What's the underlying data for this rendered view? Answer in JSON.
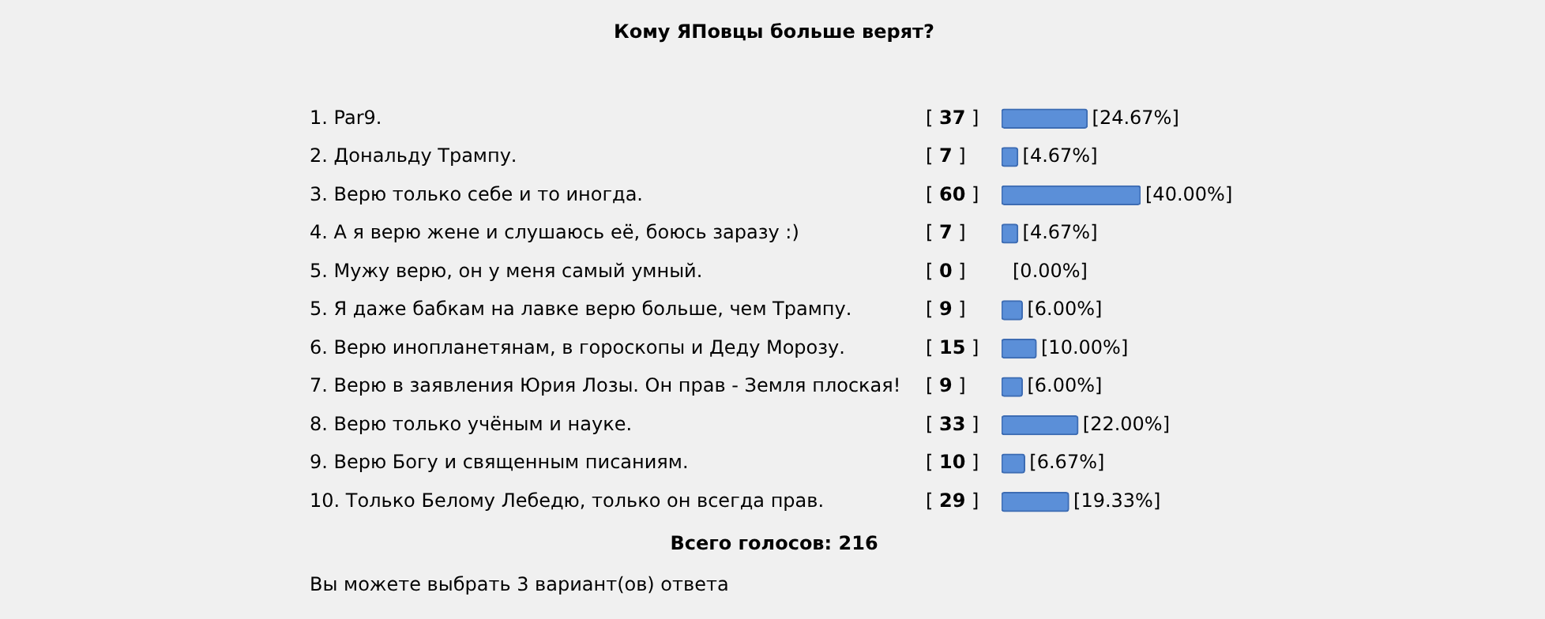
{
  "chart_data": {
    "type": "bar",
    "orientation": "horizontal",
    "title": "Кому ЯПовцы больше верят?",
    "categories": [
      "1. Par9.",
      "2. Дональду Трампу.",
      "3. Верю только себе и то иногда.",
      "4. А я верю жене и слушаюсь её, боюсь заразу :)",
      "5. Мужу верю, он у меня самый умный.",
      "5. Я даже бабкам на лавке верю больше, чем Трампу.",
      "6. Верю инопланетянам, в гороскопы и Деду Морозу.",
      "7. Верю в заявления Юрия Лозы. Он прав - Земля плоская!",
      "8. Верю только учёным и науке.",
      "9. Верю Богу и священным писаниям.",
      "10. Только Белому Лебедю, только он всегда прав."
    ],
    "values": [
      24.67,
      4.67,
      40.0,
      4.67,
      0.0,
      6.0,
      10.0,
      6.0,
      22.0,
      6.67,
      19.33
    ],
    "value_labels": [
      "[24.67%]",
      "[4.67%]",
      "[40.00%]",
      "[4.67%]",
      "[0.00%]",
      "[6.00%]",
      "[10.00%]",
      "[6.00%]",
      "[22.00%]",
      "[6.67%]",
      "[19.33%]"
    ],
    "color": "#5b8fd8",
    "annotations": [
      "[ 37 ]",
      "[ 7 ]",
      "[ 60 ]",
      "[ 7 ]",
      "[ 0 ]",
      "[ 9 ]",
      "[ 15 ]",
      "[ 9 ]",
      "[ 33 ]",
      "[ 10 ]",
      "[ 29 ]",
      "Всего голосов: 216",
      "Вы можете выбрать 3 вариант(ов) ответа"
    ]
  }
}
